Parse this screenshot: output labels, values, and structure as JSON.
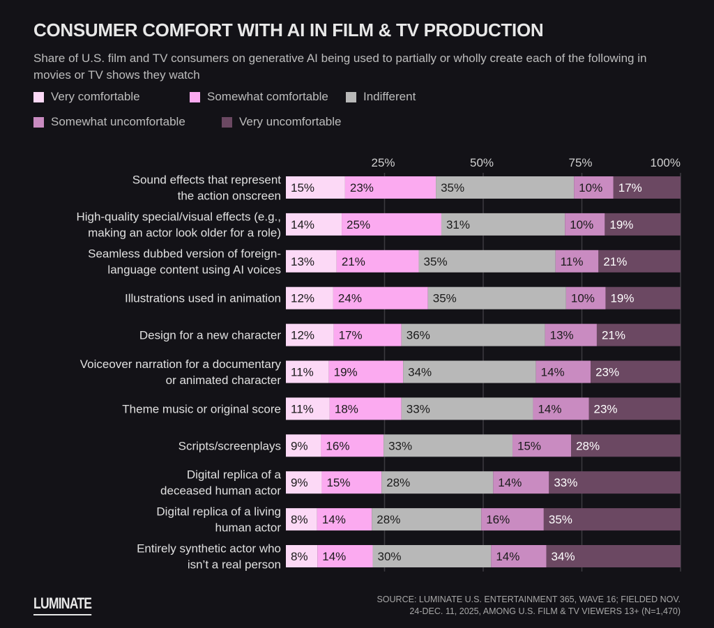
{
  "title": "CONSUMER COMFORT WITH AI IN FILM & TV PRODUCTION",
  "subtitle": "Share of U.S. film and TV consumers on generative AI being used to partially or wholly create each of the following in movies or TV shows they watch",
  "source_line1": "SOURCE: LUMINATE U.S. ENTERTAINMENT 365, WAVE 16; FIELDED NOV.",
  "source_line2": "24-DEC. 11, 2025, AMONG U.S. FILM & TV VIEWERS 13+ (N=1,470)",
  "logo": "LUMINATE",
  "chart_data": {
    "type": "bar",
    "orientation": "horizontal",
    "stacked": true,
    "xlim": [
      0,
      100
    ],
    "x_ticks": [
      "25%",
      "50%",
      "75%",
      "100%"
    ],
    "x_tick_values": [
      25,
      50,
      75,
      100
    ],
    "grid": true,
    "legend_placement": "top",
    "categories": [
      "Sound effects that represent\nthe action onscreen",
      "High-quality special/visual effects (e.g.,\nmaking an actor look older for a role)",
      "Seamless dubbed version of foreign-\nlanguage content using AI voices",
      "Illustrations used in animation",
      "Design for a new character",
      "Voiceover narration for a documentary\nor animated character",
      "Theme music or original score",
      "Scripts/screenplays",
      "Digital replica of a\ndeceased human actor",
      "Digital replica of a living\nhuman actor",
      "Entirely synthetic actor who\nisn’t a real person"
    ],
    "series": [
      {
        "name": "Very comfortable",
        "color": "#fcd9f6",
        "text_color": "#1a1a1a",
        "values": [
          15,
          14,
          13,
          12,
          12,
          11,
          11,
          9,
          9,
          8,
          8
        ]
      },
      {
        "name": "Somewhat comfortable",
        "color": "#fbaaf0",
        "text_color": "#1a1a1a",
        "values": [
          23,
          25,
          21,
          24,
          17,
          19,
          18,
          16,
          15,
          14,
          14
        ]
      },
      {
        "name": "Indifferent",
        "color": "#b8b8b8",
        "text_color": "#1a1a1a",
        "values": [
          35,
          31,
          35,
          35,
          36,
          34,
          33,
          33,
          28,
          28,
          30
        ]
      },
      {
        "name": "Somewhat uncomfortable",
        "color": "#c98bc1",
        "text_color": "#1a1a1a",
        "values": [
          10,
          10,
          11,
          10,
          13,
          14,
          14,
          15,
          14,
          16,
          14
        ]
      },
      {
        "name": "Very uncomfortable",
        "color": "#6b4862",
        "text_color": "#ffffff",
        "values": [
          17,
          19,
          21,
          19,
          21,
          23,
          23,
          28,
          33,
          35,
          34
        ]
      }
    ]
  }
}
